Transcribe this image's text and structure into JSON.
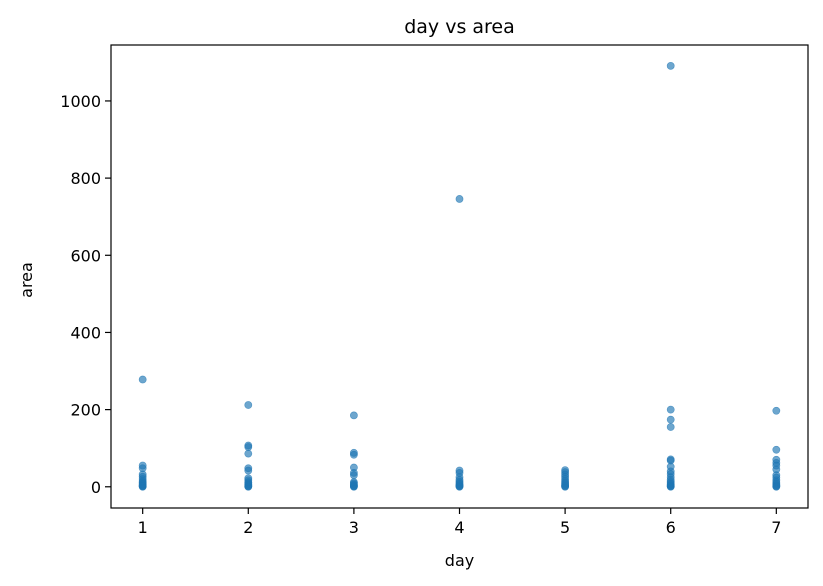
{
  "chart_data": {
    "type": "scatter",
    "title": "day vs area",
    "xlabel": "day",
    "ylabel": "area",
    "xlim": [
      0.7,
      7.3
    ],
    "ylim": [
      -55,
      1145
    ],
    "xticks": [
      1,
      2,
      3,
      4,
      5,
      6,
      7
    ],
    "yticks": [
      0,
      200,
      400,
      600,
      800,
      1000
    ],
    "grid": false,
    "marker_color": "#1f77b4",
    "points": [
      {
        "x": 1,
        "y": 0
      },
      {
        "x": 1,
        "y": 1
      },
      {
        "x": 1,
        "y": 2
      },
      {
        "x": 1,
        "y": 3
      },
      {
        "x": 1,
        "y": 5
      },
      {
        "x": 1,
        "y": 7
      },
      {
        "x": 1,
        "y": 9
      },
      {
        "x": 1,
        "y": 12
      },
      {
        "x": 1,
        "y": 15
      },
      {
        "x": 1,
        "y": 20
      },
      {
        "x": 1,
        "y": 26
      },
      {
        "x": 1,
        "y": 32
      },
      {
        "x": 1,
        "y": 48
      },
      {
        "x": 1,
        "y": 55
      },
      {
        "x": 1,
        "y": 278
      },
      {
        "x": 2,
        "y": 0
      },
      {
        "x": 2,
        "y": 1
      },
      {
        "x": 2,
        "y": 2
      },
      {
        "x": 2,
        "y": 4
      },
      {
        "x": 2,
        "y": 6
      },
      {
        "x": 2,
        "y": 9
      },
      {
        "x": 2,
        "y": 12
      },
      {
        "x": 2,
        "y": 17
      },
      {
        "x": 2,
        "y": 22
      },
      {
        "x": 2,
        "y": 42
      },
      {
        "x": 2,
        "y": 48
      },
      {
        "x": 2,
        "y": 86
      },
      {
        "x": 2,
        "y": 103
      },
      {
        "x": 2,
        "y": 107
      },
      {
        "x": 2,
        "y": 212
      },
      {
        "x": 3,
        "y": 0
      },
      {
        "x": 3,
        "y": 1
      },
      {
        "x": 3,
        "y": 2
      },
      {
        "x": 3,
        "y": 4
      },
      {
        "x": 3,
        "y": 6
      },
      {
        "x": 3,
        "y": 9
      },
      {
        "x": 3,
        "y": 12
      },
      {
        "x": 3,
        "y": 30
      },
      {
        "x": 3,
        "y": 36
      },
      {
        "x": 3,
        "y": 50
      },
      {
        "x": 3,
        "y": 83
      },
      {
        "x": 3,
        "y": 88
      },
      {
        "x": 3,
        "y": 185
      },
      {
        "x": 4,
        "y": 0
      },
      {
        "x": 4,
        "y": 1
      },
      {
        "x": 4,
        "y": 2
      },
      {
        "x": 4,
        "y": 4
      },
      {
        "x": 4,
        "y": 6
      },
      {
        "x": 4,
        "y": 9
      },
      {
        "x": 4,
        "y": 13
      },
      {
        "x": 4,
        "y": 18
      },
      {
        "x": 4,
        "y": 25
      },
      {
        "x": 4,
        "y": 36
      },
      {
        "x": 4,
        "y": 42
      },
      {
        "x": 4,
        "y": 746
      },
      {
        "x": 5,
        "y": 0
      },
      {
        "x": 5,
        "y": 1
      },
      {
        "x": 5,
        "y": 3
      },
      {
        "x": 5,
        "y": 5
      },
      {
        "x": 5,
        "y": 8
      },
      {
        "x": 5,
        "y": 11
      },
      {
        "x": 5,
        "y": 15
      },
      {
        "x": 5,
        "y": 20
      },
      {
        "x": 5,
        "y": 26
      },
      {
        "x": 5,
        "y": 32
      },
      {
        "x": 5,
        "y": 38
      },
      {
        "x": 5,
        "y": 43
      },
      {
        "x": 6,
        "y": 0
      },
      {
        "x": 6,
        "y": 1
      },
      {
        "x": 6,
        "y": 2
      },
      {
        "x": 6,
        "y": 4
      },
      {
        "x": 6,
        "y": 6
      },
      {
        "x": 6,
        "y": 9
      },
      {
        "x": 6,
        "y": 13
      },
      {
        "x": 6,
        "y": 18
      },
      {
        "x": 6,
        "y": 25
      },
      {
        "x": 6,
        "y": 33
      },
      {
        "x": 6,
        "y": 40
      },
      {
        "x": 6,
        "y": 52
      },
      {
        "x": 6,
        "y": 68
      },
      {
        "x": 6,
        "y": 71
      },
      {
        "x": 6,
        "y": 155
      },
      {
        "x": 6,
        "y": 174
      },
      {
        "x": 6,
        "y": 200
      },
      {
        "x": 6,
        "y": 1091
      },
      {
        "x": 7,
        "y": 0
      },
      {
        "x": 7,
        "y": 1
      },
      {
        "x": 7,
        "y": 3
      },
      {
        "x": 7,
        "y": 5
      },
      {
        "x": 7,
        "y": 8
      },
      {
        "x": 7,
        "y": 12
      },
      {
        "x": 7,
        "y": 17
      },
      {
        "x": 7,
        "y": 24
      },
      {
        "x": 7,
        "y": 30
      },
      {
        "x": 7,
        "y": 45
      },
      {
        "x": 7,
        "y": 55
      },
      {
        "x": 7,
        "y": 62
      },
      {
        "x": 7,
        "y": 70
      },
      {
        "x": 7,
        "y": 96
      },
      {
        "x": 7,
        "y": 197
      }
    ]
  }
}
